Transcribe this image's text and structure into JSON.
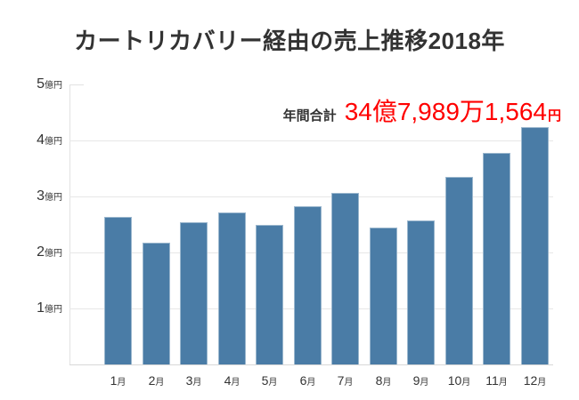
{
  "page": {
    "background_color": "#ffffff"
  },
  "title": "カートリカバリー経由の売上推移2018年",
  "annotation": {
    "label": "年間合計",
    "value": "34億7,989万1,564",
    "unit": "円",
    "label_color": "#333333",
    "value_color": "#ff0000"
  },
  "chart_data": {
    "type": "bar",
    "title": "カートリカバリー経由の売上推移2018年",
    "categories": [
      "1月",
      "2月",
      "3月",
      "4月",
      "5月",
      "6月",
      "7月",
      "8月",
      "9月",
      "10月",
      "11月",
      "12月"
    ],
    "values": [
      2.64,
      2.18,
      2.54,
      2.72,
      2.49,
      2.82,
      3.07,
      2.45,
      2.57,
      3.35,
      3.77,
      4.24
    ],
    "value_unit": "億円",
    "y_tick_labels": [
      "1億円",
      "2億円",
      "3億円",
      "4億円",
      "5億円"
    ],
    "y_tick_values": [
      1,
      2,
      3,
      4,
      5
    ],
    "ylim": [
      0,
      5
    ],
    "grid": true,
    "legend": false,
    "bar_color": "#4a7ca6",
    "annual_total_label": "年間合計",
    "annual_total_value": "34億7,989万1,564円"
  }
}
